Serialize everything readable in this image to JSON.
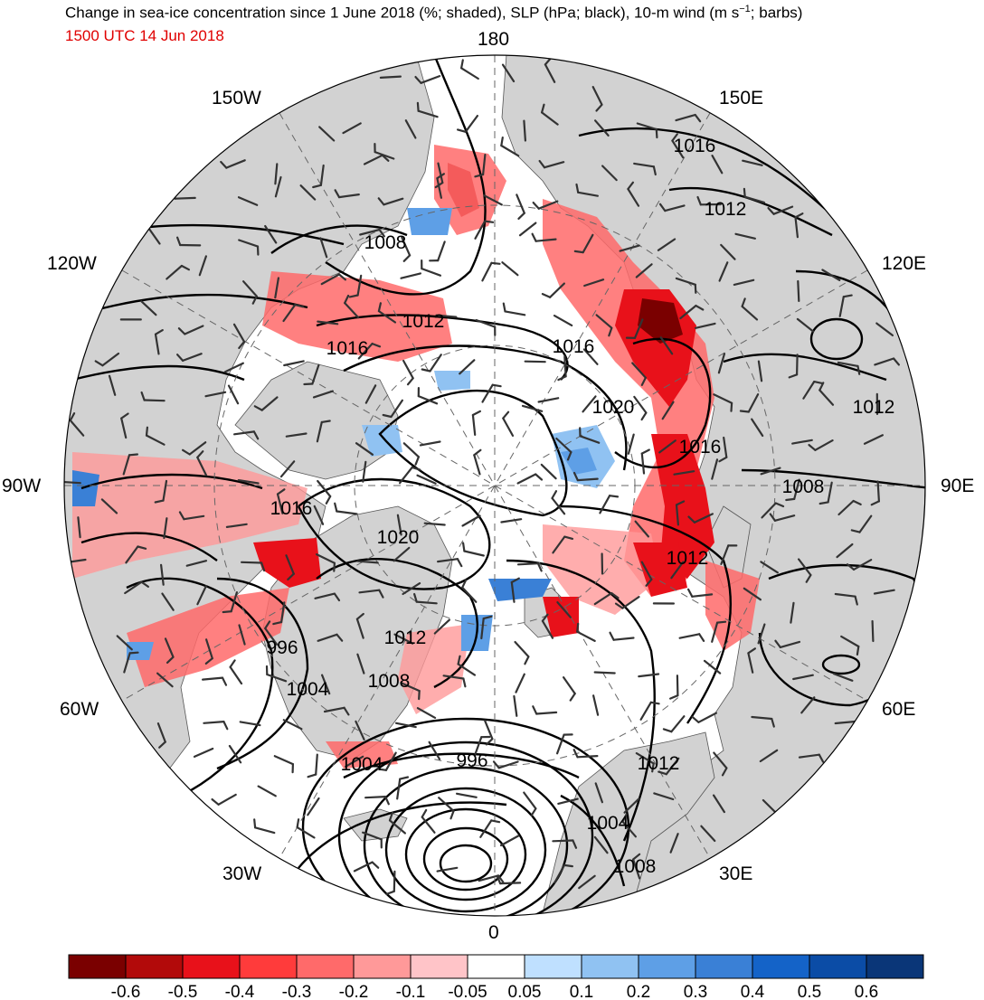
{
  "title": "Change in sea-ice concentration since 1 June 2018 (%; shaded), SLP (hPa; black), 10-m wind (m s",
  "title_sup": "−1",
  "title_end": "; barbs)",
  "subtitle": "1500 UTC 14 Jun 2018",
  "longitude_labels": {
    "n": "180",
    "nw": "150W",
    "ne": "150E",
    "w120": "120W",
    "e120": "120E",
    "w90": "90W",
    "e90": "90E",
    "w60": "60W",
    "e60": "60E",
    "w30": "30W",
    "e30": "30E",
    "s": "0"
  },
  "slp_labels": [
    "1016",
    "1012",
    "1008",
    "1012",
    "1016",
    "1016",
    "1020",
    "1012",
    "1016",
    "1008",
    "1016",
    "1020",
    "1012",
    "996",
    "1004",
    "1008",
    "1012",
    "996",
    "1004",
    "1012",
    "1004",
    "1008"
  ],
  "colorbar": {
    "ticks": [
      "-0.6",
      "-0.5",
      "-0.4",
      "-0.3",
      "-0.2",
      "-0.1",
      "-0.05",
      "0.05",
      "0.1",
      "0.2",
      "0.3",
      "0.4",
      "0.5",
      "0.6"
    ],
    "colors": [
      "#7a0000",
      "#b20a0a",
      "#e8111a",
      "#ff3b3b",
      "#ff6a6a",
      "#ff9999",
      "#ffc4c8",
      "#ffffff",
      "#bfe0ff",
      "#90c2f2",
      "#5e9fe6",
      "#3a80d6",
      "#1463c8",
      "#0b4ca6",
      "#0a3678"
    ]
  },
  "colors": {
    "land": "#d2d2d2",
    "ocean": "#ffffff",
    "title_red": "#e00000"
  }
}
